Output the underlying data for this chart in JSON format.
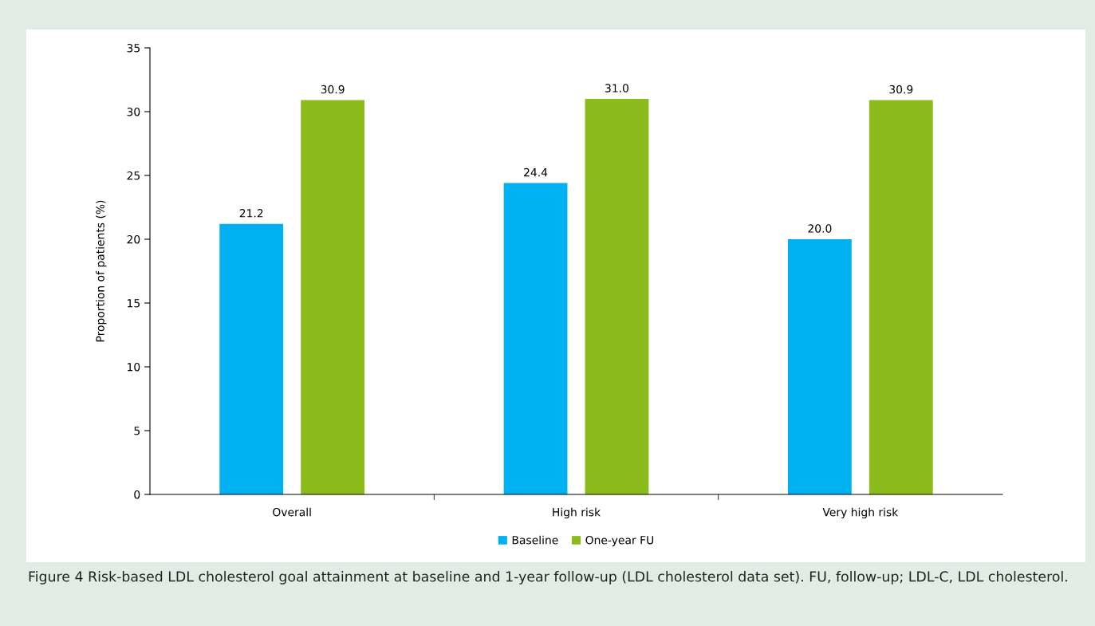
{
  "chart_data": {
    "type": "bar",
    "ylabel": "Proportion of patients (%)",
    "categories": [
      "Overall",
      "High risk",
      "Very high risk"
    ],
    "series": [
      {
        "name": "Baseline",
        "color": "#00b0f0",
        "values": [
          21.2,
          24.4,
          20.0
        ],
        "value_labels": [
          "21.2",
          "24.4",
          "20.0"
        ]
      },
      {
        "name": "One-year FU",
        "color": "#8cbb1c",
        "values": [
          30.9,
          31.0,
          30.9
        ],
        "value_labels": [
          "30.9",
          "31.0",
          "30.9"
        ]
      }
    ],
    "ylim": [
      0,
      35
    ],
    "yticks": [
      0,
      5,
      10,
      15,
      20,
      25,
      30,
      35
    ],
    "grid": false,
    "legend": "bottom",
    "annotations": [
      "Figure 4 Risk-based LDL cholesterol goal attainment at baseline and 1-year follow-up (LDL cholesterol data set). FU, follow-up; LDL-C, LDL cholesterol."
    ]
  }
}
